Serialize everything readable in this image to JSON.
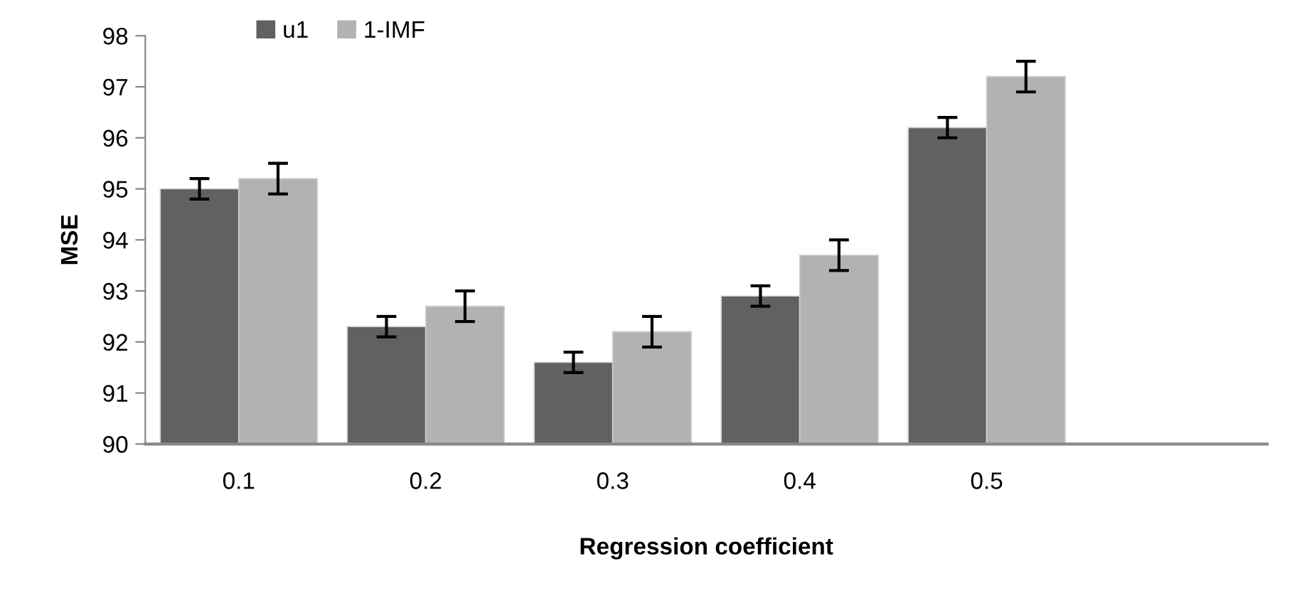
{
  "chart_data": {
    "type": "bar",
    "xlabel": "Regression coefficient",
    "ylabel": "MSE",
    "categories": [
      "0.1",
      "0.2",
      "0.3",
      "0.4",
      "0.5",
      null
    ],
    "series": [
      {
        "name": "u1",
        "color": "#616161",
        "values": [
          95.0,
          92.3,
          91.6,
          92.9,
          96.2,
          null
        ],
        "errors": [
          0.2,
          0.2,
          0.2,
          0.2,
          0.2,
          null
        ]
      },
      {
        "name": "1-IMF",
        "color": "#b2b2b2",
        "values": [
          95.2,
          92.7,
          92.2,
          93.7,
          97.2,
          null
        ],
        "errors": [
          0.3,
          0.3,
          0.3,
          0.3,
          0.3,
          null
        ]
      }
    ],
    "ylim": [
      90,
      98
    ],
    "yticks": [
      90,
      91,
      92,
      93,
      94,
      95,
      96,
      97,
      98
    ],
    "grid": false,
    "legend": "top left"
  }
}
